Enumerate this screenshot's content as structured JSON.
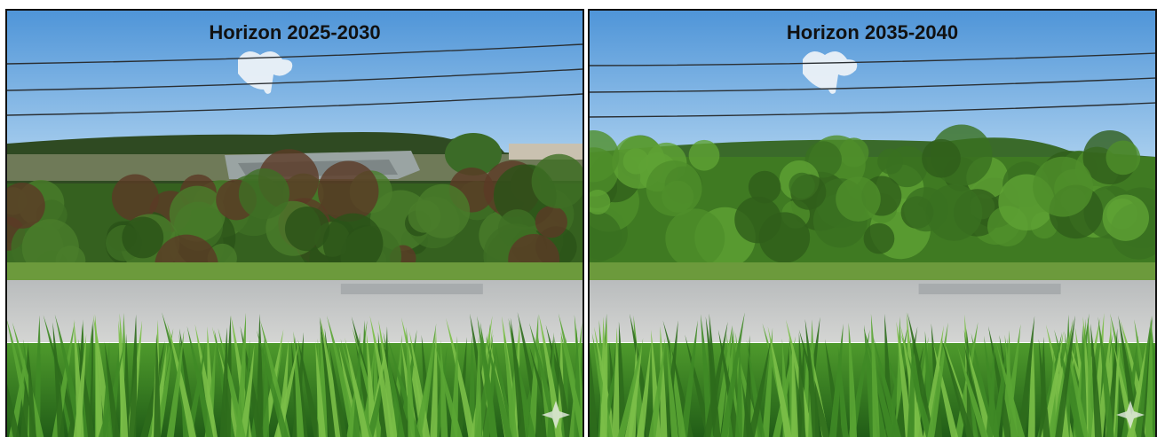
{
  "panels": [
    {
      "title": "Horizon 2025-2030"
    },
    {
      "title": "Horizon 2035-2040"
    }
  ]
}
